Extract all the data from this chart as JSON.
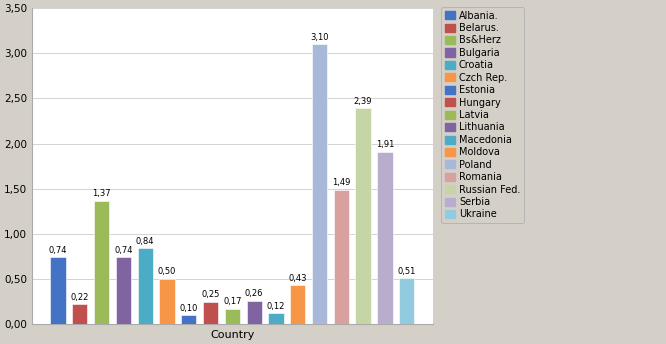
{
  "countries": [
    "Albania",
    "Belarus",
    "Bs&Herz",
    "Bulgaria",
    "Croatia",
    "Czch Rep.",
    "Estonia",
    "Hungary",
    "Latvia",
    "Lithuania",
    "Macedonia",
    "Moldova",
    "Poland",
    "Romania",
    "Russian Fed.",
    "Serbia",
    "Ukraine"
  ],
  "values": [
    0.74,
    0.22,
    1.37,
    0.74,
    0.84,
    0.5,
    0.1,
    0.25,
    0.17,
    0.26,
    0.12,
    0.43,
    3.1,
    1.49,
    2.39,
    1.91,
    0.51
  ],
  "bar_colors": [
    "#4472C4",
    "#C0504D",
    "#9BBB59",
    "#8064A2",
    "#4BACC6",
    "#F79646",
    "#4472C4",
    "#C0504D",
    "#9BBB59",
    "#8064A2",
    "#4BACC6",
    "#F79646",
    "#A8B8D8",
    "#D9A0A0",
    "#C5D5A5",
    "#B8ADCC",
    "#92CADF"
  ],
  "legend_labels": [
    "Albania.",
    "Belarus.",
    "Bs&Herz",
    "Bulgaria",
    "Croatia",
    "Czch Rep.",
    "Estonia",
    "Hungary",
    "Latvia",
    "Lithuania",
    "Macedonia",
    "Moldova",
    "Poland",
    "Romania",
    "Russian Fed.",
    "Serbia",
    "Ukraine"
  ],
  "legend_colors": [
    "#4472C4",
    "#C0504D",
    "#9BBB59",
    "#8064A2",
    "#4BACC6",
    "#F79646",
    "#4472C4",
    "#C0504D",
    "#9BBB59",
    "#8064A2",
    "#4BACC6",
    "#F79646",
    "#A8B8D8",
    "#D9A0A0",
    "#C5D5A5",
    "#B8ADCC",
    "#92CADF"
  ],
  "xlabel": "Country",
  "ylim": [
    0,
    3.5
  ],
  "yticks": [
    0.0,
    0.5,
    1.0,
    1.5,
    2.0,
    2.5,
    3.0,
    3.5
  ],
  "ytick_labels": [
    "0,00",
    "0,50",
    "1,00",
    "1,50",
    "2,00",
    "2,50",
    "3,00",
    "3,50"
  ],
  "background_color": "#D4D0C8",
  "plot_bg_color": "#FFFFFF",
  "bar_label_fontsize": 6.0,
  "axis_label_fontsize": 8,
  "tick_fontsize": 7.5,
  "legend_fontsize": 7.0
}
